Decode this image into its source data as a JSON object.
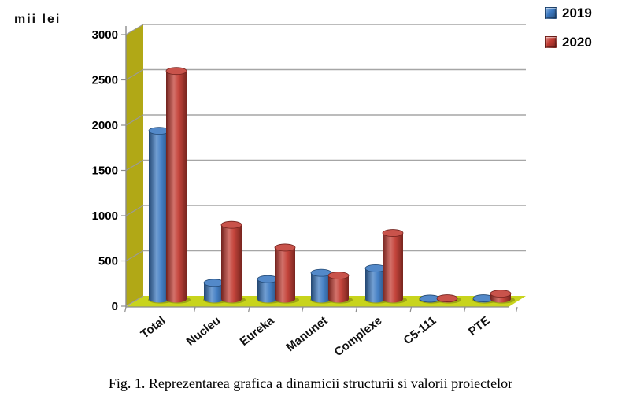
{
  "unit_label": "mii lei",
  "legend": [
    {
      "label": "2019",
      "color": "#3b79c2"
    },
    {
      "label": "2020",
      "color": "#c23b32"
    }
  ],
  "caption": "Fig. 1. Reprezentarea grafica a dinamicii structurii si valorii proiectelor",
  "chart_data": {
    "type": "bar",
    "style": "3d-cylinder",
    "title": "",
    "ylabel": "mii lei",
    "categories": [
      "Total",
      "Nucleu",
      "Eureka",
      "Manunet",
      "Complexe",
      "C5-111",
      "PTE"
    ],
    "series": [
      {
        "name": "2019",
        "color": "#3b79c2",
        "values": [
          1860,
          180,
          220,
          290,
          340,
          5,
          8
        ]
      },
      {
        "name": "2020",
        "color": "#c23b32",
        "values": [
          2520,
          820,
          570,
          260,
          730,
          8,
          60
        ]
      }
    ],
    "ylim": [
      0,
      3000
    ],
    "ytick_step": 500,
    "grid": true,
    "legend_position": "top-right",
    "wall_color": "#b1a816",
    "floor_color": "#c8d41c",
    "shadow_color": "#80860f",
    "gridline_color": "#a6a6a6",
    "axis_color": "#8c8c8c",
    "tick_label_color": "#000000"
  }
}
